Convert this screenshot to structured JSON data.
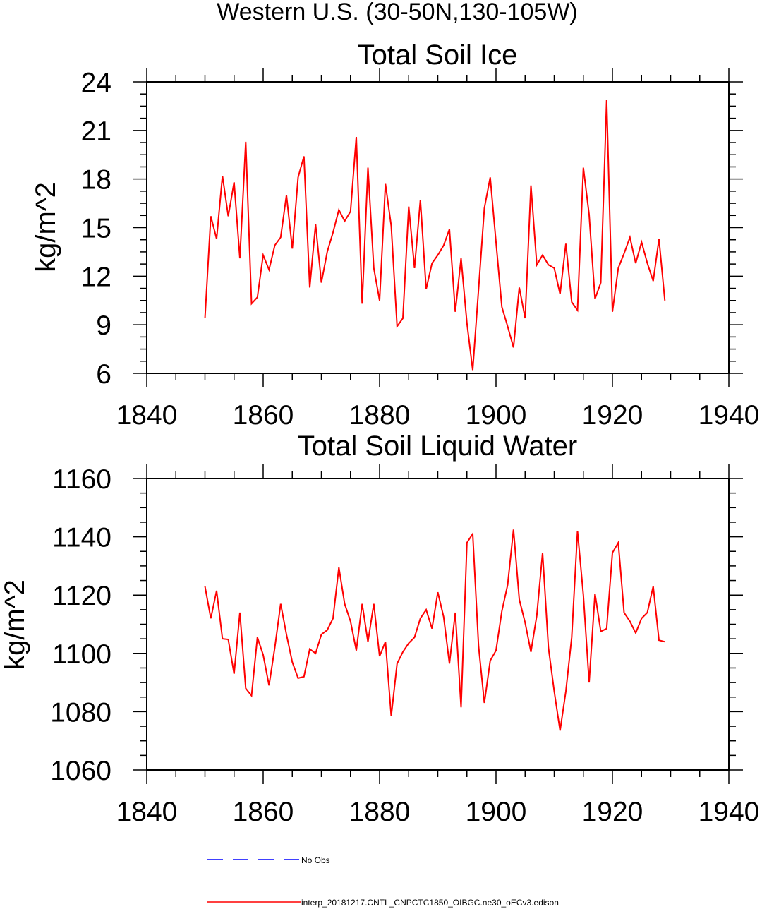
{
  "figure_title": "Western U.S. (30-50N,130-105W)",
  "chart_data": [
    {
      "type": "line",
      "title": "Total Soil Ice",
      "xlabel": "",
      "ylabel": "kg/m^2",
      "xlim": [
        1840,
        1940
      ],
      "ylim": [
        6,
        24
      ],
      "xticks": [
        1840,
        1860,
        1880,
        1900,
        1920,
        1940
      ],
      "yticks": [
        6,
        9,
        12,
        15,
        18,
        21,
        24
      ],
      "series": [
        {
          "name": "interp_20181217.CNTL_CNPCTC1850_OIBGC.ne30_oECv3.edison",
          "color": "#ff0000",
          "x": [
            1850,
            1851,
            1852,
            1853,
            1854,
            1855,
            1856,
            1857,
            1858,
            1859,
            1860,
            1861,
            1862,
            1863,
            1864,
            1865,
            1866,
            1867,
            1868,
            1869,
            1870,
            1871,
            1872,
            1873,
            1874,
            1875,
            1876,
            1877,
            1878,
            1879,
            1880,
            1881,
            1882,
            1883,
            1884,
            1885,
            1886,
            1887,
            1888,
            1889,
            1890,
            1891,
            1892,
            1893,
            1894,
            1895,
            1896,
            1897,
            1898,
            1899,
            1900,
            1901,
            1902,
            1903,
            1904,
            1905,
            1906,
            1907,
            1908,
            1909,
            1910,
            1911,
            1912,
            1913,
            1914,
            1915,
            1916,
            1917,
            1918,
            1919,
            1920,
            1921,
            1922,
            1923,
            1924,
            1925,
            1926,
            1927,
            1928,
            1929
          ],
          "values": [
            9.4,
            15.7,
            14.3,
            18.2,
            15.7,
            17.8,
            13.1,
            20.3,
            10.3,
            10.7,
            13.3,
            12.4,
            13.9,
            14.4,
            17.0,
            13.7,
            18.1,
            19.4,
            11.3,
            15.2,
            11.6,
            13.5,
            14.7,
            16.1,
            15.4,
            16.0,
            20.6,
            10.3,
            18.7,
            12.5,
            10.5,
            17.7,
            15.1,
            8.9,
            9.4,
            16.3,
            12.5,
            16.7,
            11.2,
            12.8,
            13.3,
            13.9,
            14.9,
            9.8,
            13.1,
            9.1,
            6.2,
            11.2,
            16.2,
            18.1,
            14.1,
            10.1,
            8.9,
            7.6,
            11.3,
            9.4,
            17.6,
            12.7,
            13.3,
            12.7,
            12.5,
            10.9,
            14.0,
            10.4,
            9.9,
            18.7,
            15.8,
            10.6,
            11.6,
            22.9,
            9.8,
            12.5,
            13.4,
            14.4,
            12.8,
            14.1,
            12.8,
            11.7,
            14.3,
            10.5
          ]
        }
      ]
    },
    {
      "type": "line",
      "title": "Total Soil Liquid Water",
      "xlabel": "",
      "ylabel": "kg/m^2",
      "xlim": [
        1840,
        1940
      ],
      "ylim": [
        1060,
        1160
      ],
      "xticks": [
        1840,
        1860,
        1880,
        1900,
        1920,
        1940
      ],
      "yticks": [
        1060,
        1080,
        1100,
        1120,
        1140,
        1160
      ],
      "series": [
        {
          "name": "interp_20181217.CNTL_CNPCTC1850_OIBGC.ne30_oECv3.edison",
          "color": "#ff0000",
          "x": [
            1850,
            1851,
            1852,
            1853,
            1854,
            1855,
            1856,
            1857,
            1858,
            1859,
            1860,
            1861,
            1862,
            1863,
            1864,
            1865,
            1866,
            1867,
            1868,
            1869,
            1870,
            1871,
            1872,
            1873,
            1874,
            1875,
            1876,
            1877,
            1878,
            1879,
            1880,
            1881,
            1882,
            1883,
            1884,
            1885,
            1886,
            1887,
            1888,
            1889,
            1890,
            1891,
            1892,
            1893,
            1894,
            1895,
            1896,
            1897,
            1898,
            1899,
            1900,
            1901,
            1902,
            1903,
            1904,
            1905,
            1906,
            1907,
            1908,
            1909,
            1910,
            1911,
            1912,
            1913,
            1914,
            1915,
            1916,
            1917,
            1918,
            1919,
            1920,
            1921,
            1922,
            1923,
            1924,
            1925,
            1926,
            1927,
            1928,
            1929
          ],
          "values": [
            1123,
            1112,
            1121.5,
            1105,
            1104.8,
            1093,
            1114,
            1088,
            1085.5,
            1105.5,
            1099.5,
            1089,
            1102,
            1117,
            1106.5,
            1097,
            1091.5,
            1092,
            1101.5,
            1100,
            1106.5,
            1108,
            1112,
            1129.5,
            1117,
            1111,
            1101,
            1117,
            1104,
            1117,
            1099,
            1104,
            1078.5,
            1096.5,
            1100.5,
            1103.5,
            1105.5,
            1112,
            1115,
            1108.5,
            1121,
            1112.5,
            1096.5,
            1114,
            1081.5,
            1138,
            1141,
            1102.5,
            1083,
            1097.5,
            1101,
            1114.5,
            1123.5,
            1142.5,
            1118.5,
            1110.5,
            1100.5,
            1113,
            1134.5,
            1102,
            1087,
            1073.5,
            1087,
            1105.5,
            1142,
            1120,
            1090,
            1120.5,
            1107.5,
            1108.5,
            1134.5,
            1138,
            1114,
            1111,
            1107,
            1112,
            1114,
            1123,
            1104.5,
            1104
          ]
        }
      ]
    }
  ],
  "legend": [
    {
      "label": "No Obs",
      "color": "#0000ff",
      "style": "dashed"
    },
    {
      "label": "interp_20181217.CNTL_CNPCTC1850_OIBGC.ne30_oECv3.edison",
      "color": "#ff0000",
      "style": "solid"
    }
  ]
}
